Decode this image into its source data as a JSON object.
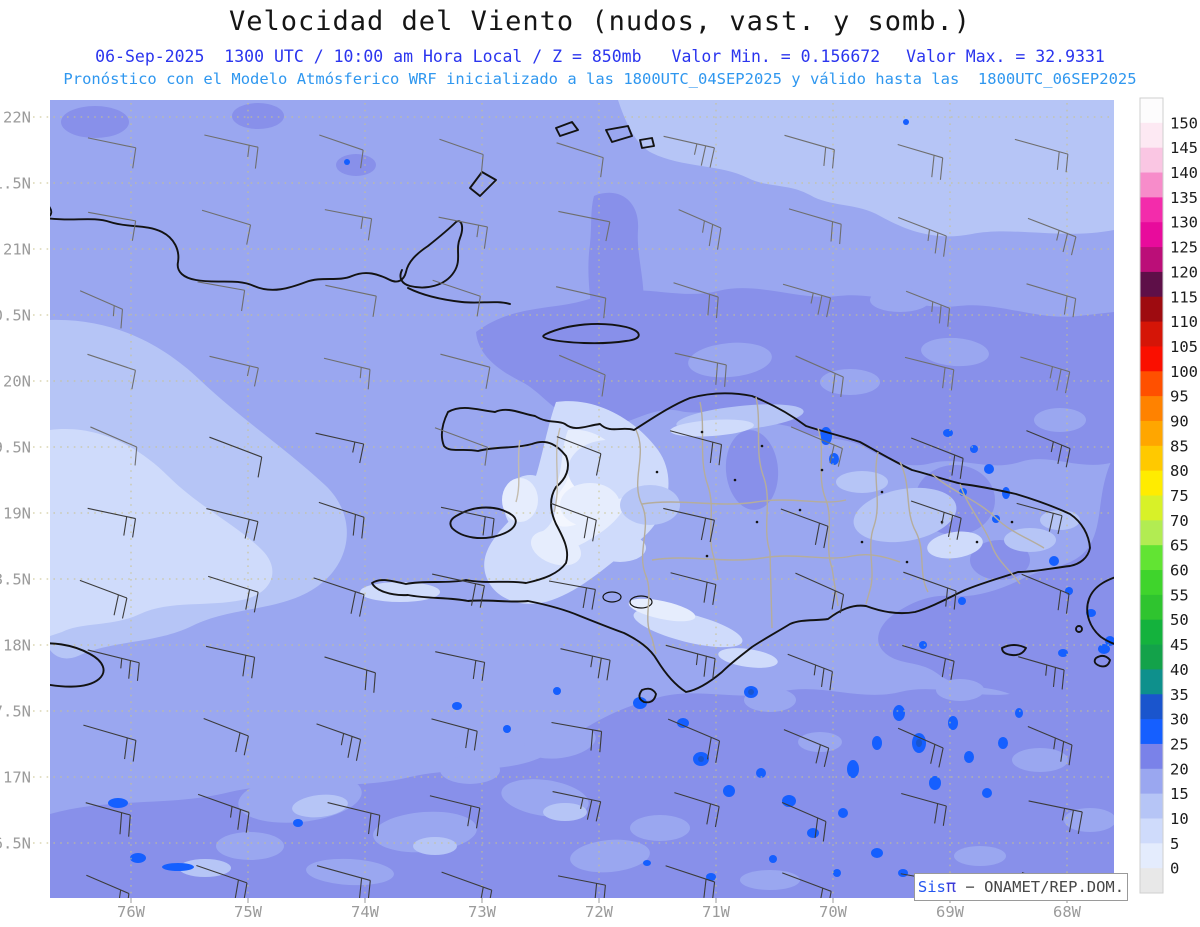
{
  "title": "Velocidad del Viento (nudos, vast. y somb.)",
  "header": {
    "datetime_line": "06-Sep-2025  1300 UTC / 10:00 am Hora Local / Z = 850mb",
    "min_label": "Valor Min. = 0.156672",
    "max_label": "Valor Max. = 32.9331",
    "model_line": "Pronóstico con el Modelo Atmósferico WRF inicializado a las 1800UTC_04SEP2025 y válido hasta las  1800UTC_06SEP2025"
  },
  "axes": {
    "lat_labels": [
      "22N",
      "1.5N",
      "21N",
      "0.5N",
      "20N",
      "9.5N",
      "19N",
      "8.5N",
      "18N",
      "7.5N",
      "17N",
      "6.5N"
    ],
    "lon_labels": [
      "76W",
      "75W",
      "74W",
      "73W",
      "72W",
      "71W",
      "70W",
      "69W",
      "68W"
    ]
  },
  "colorbar": {
    "tick_labels": [
      "150",
      "145",
      "140",
      "135",
      "130",
      "125",
      "120",
      "115",
      "110",
      "105",
      "100",
      "95",
      "90",
      "85",
      "80",
      "75",
      "70",
      "65",
      "60",
      "55",
      "50",
      "45",
      "40",
      "35",
      "30",
      "25",
      "20",
      "15",
      "10",
      "5",
      "0"
    ],
    "segment_colors_top_to_bottom": [
      "#fdfcfd",
      "#fde9f3",
      "#fac6e3",
      "#f78cca",
      "#f32cab",
      "#e80b9c",
      "#bb0e78",
      "#5e0f48",
      "#9e0b10",
      "#d51507",
      "#fa0f00",
      "#ff5000",
      "#ff8200",
      "#ffa600",
      "#ffc900",
      "#ffec00",
      "#d8f128",
      "#b2ec52",
      "#62e433",
      "#3fd42c",
      "#2fc42f",
      "#14b23d",
      "#13a24a",
      "#0e908c",
      "#1a55cd",
      "#155fff",
      "#7a82e9",
      "#9aa7f0",
      "#b6c5f6",
      "#cfdbfb",
      "#e4ecfd",
      "#e8e8e8"
    ]
  },
  "field": {
    "units": "nudos",
    "value_min": 0.156672,
    "value_max": 32.9331,
    "level": "850mb",
    "base_color": "#9aa7f0",
    "bright_spot_color": "#155fff"
  },
  "wind_barbs": {
    "col_start": 86,
    "col_step": 117,
    "cols": 9,
    "row_start": 140,
    "row_step": 73,
    "rows": 11
  },
  "attribution": {
    "brand": "Sis",
    "brand_symbol": "π",
    "text": " − ONAMET/REP.DOM."
  }
}
